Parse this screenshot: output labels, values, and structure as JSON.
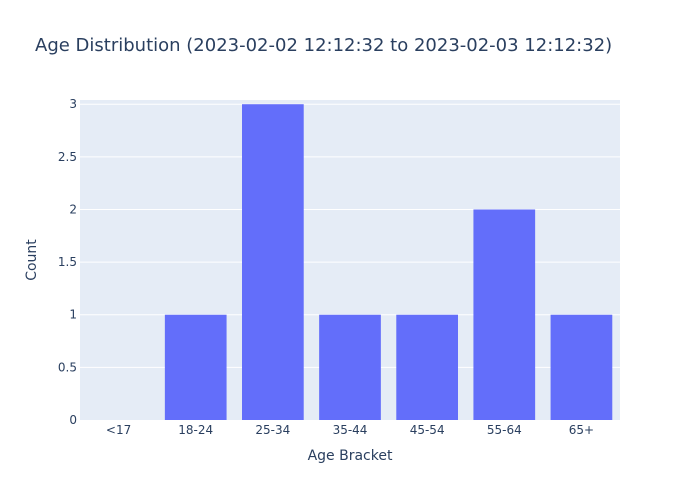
{
  "chart_data": {
    "type": "bar",
    "title": "Age Distribution (2023-02-02 12:12:32 to 2023-02-03 12:12:32)",
    "xlabel": "Age Bracket",
    "ylabel": "Count",
    "categories": [
      "<17",
      "18-24",
      "25-34",
      "35-44",
      "45-54",
      "55-64",
      "65+"
    ],
    "values": [
      0,
      1,
      3,
      1,
      1,
      2,
      1
    ],
    "ylim": [
      0,
      3.04
    ],
    "yticks": [
      0,
      0.5,
      1,
      1.5,
      2,
      2.5,
      3
    ],
    "ytick_labels": [
      "0",
      "0.5",
      "1",
      "1.5",
      "2",
      "2.5",
      "3"
    ],
    "grid": true,
    "colors": {
      "bar": "#636efa",
      "plot_bg": "#e5ecf6",
      "grid": "#ffffff",
      "text": "#2a3f5f"
    }
  }
}
